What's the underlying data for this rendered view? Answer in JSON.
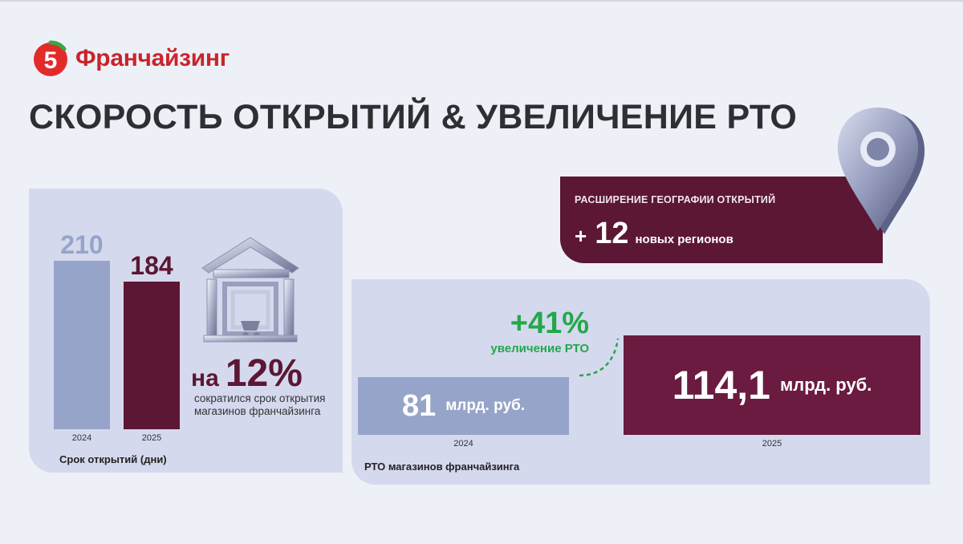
{
  "brand": {
    "mark_text": "5",
    "name": "Франчайзинг",
    "color": "#c9242b"
  },
  "title": "СКОРОСТЬ ОТКРЫТИЙ & УВЕЛИЧЕНИЕ РТО",
  "colors": {
    "bar_2024": "#97a4c9",
    "bar_2025": "#5b1733",
    "bar_2025_rto": "#6a1b3f",
    "growth": "#22a84a",
    "panel": "#d5d9ee"
  },
  "opening_time": {
    "caption": "Срок открытий (дни)",
    "reduction": {
      "prefix": "на",
      "value": "12%",
      "note": "сократился срок открытия магазинов франчайзинга"
    }
  },
  "geo": {
    "title": "РАСШИРЕНИЕ ГЕОГРАФИИ ОТКРЫТИЙ",
    "plus": "+",
    "value": "12",
    "text": "новых регионов"
  },
  "rto": {
    "caption": "РТО магазинов франчайзинга",
    "growth_value": "+41%",
    "growth_label": "увеличение РТО"
  },
  "chart_data": [
    {
      "type": "bar",
      "categories": [
        "2024",
        "2025"
      ],
      "values": [
        210,
        184
      ],
      "value_labels": [
        "210",
        "184"
      ],
      "title": "",
      "xlabel": "Срок открытий (дни)",
      "ylabel": "",
      "ylim": [
        0,
        210
      ]
    },
    {
      "type": "bar",
      "orientation": "horizontal",
      "categories": [
        "2024",
        "2025"
      ],
      "values": [
        81,
        114.1
      ],
      "value_labels": [
        {
          "num": "81",
          "unit": "млрд. руб."
        },
        {
          "num": "114,1",
          "unit": "млрд. руб."
        }
      ],
      "title": "",
      "xlabel": "РТО магазинов франчайзинга",
      "ylabel": "",
      "xlim": [
        0,
        114.1
      ]
    }
  ]
}
